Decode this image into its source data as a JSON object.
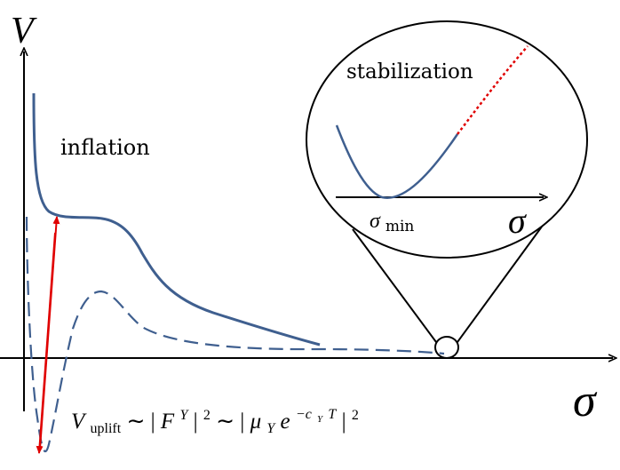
{
  "figure": {
    "axis_label_v": "V",
    "axis_label_sigma": "σ",
    "label_inflation": "inflation",
    "label_stabilization": "stabilization",
    "inset_axis_label_sigma": "σ",
    "inset_min_label_symbol": "σ",
    "inset_min_label_subscript": "min",
    "uplift_formula": {
      "V": "V",
      "V_sub": "uplift",
      "sim1": " ∼ |",
      "F": "F",
      "F_sup": "Y",
      "abs2": "|",
      "pow2a": "2",
      "sim2": " ∼ |",
      "mu": "μ",
      "mu_sub": "Y",
      "e": "e",
      "exp": "−c",
      "exp_sub": "Y",
      "exp_T": "T",
      "abs3": "|",
      "pow2b": "2"
    }
  },
  "colors": {
    "curve": "#3f5f8f",
    "axis": "#000000",
    "arrow": "#e00000",
    "dotted": "#e00000"
  }
}
